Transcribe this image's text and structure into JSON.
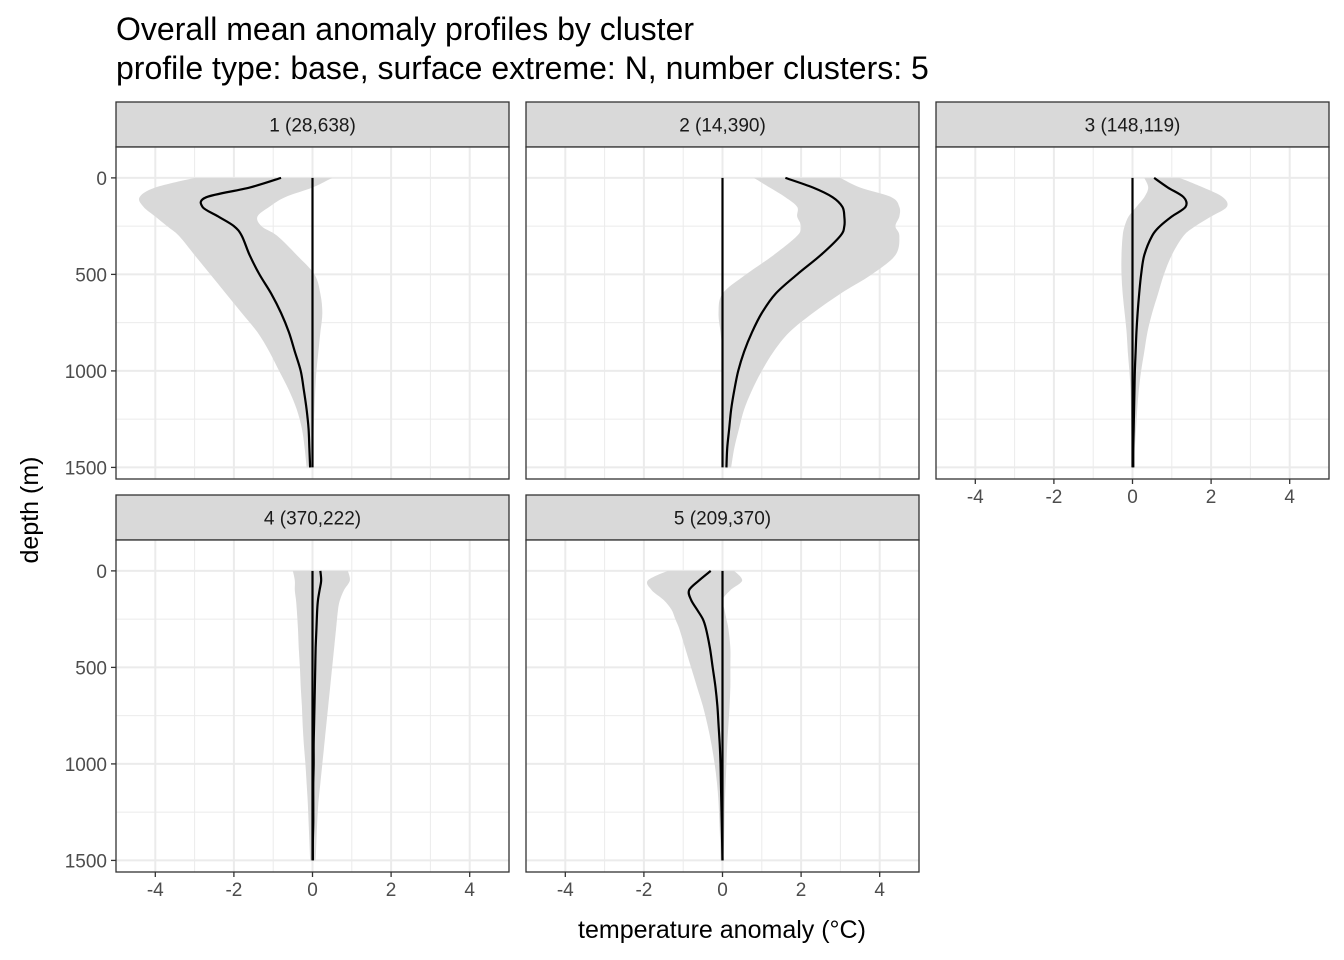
{
  "chart_data": {
    "type": "area",
    "title": "Overall mean anomaly profiles by cluster",
    "subtitle": "profile type: base, surface extreme: N, number clusters: 5",
    "xlabel": "temperature anomaly (°C)",
    "ylabel": "depth (m)",
    "xlim": [
      -5,
      5
    ],
    "ylim": [
      1560,
      -160
    ],
    "y_reversed": true,
    "x_ticks": [
      -4,
      -2,
      0,
      2,
      4
    ],
    "x_tick_labels": [
      "-4",
      "-2",
      "0",
      "2",
      "4"
    ],
    "y_ticks": [
      0,
      500,
      1000,
      1500
    ],
    "y_tick_labels": [
      "0",
      "500",
      "1000",
      "1500"
    ],
    "grid": true,
    "reference_line_x": 0,
    "colors": {
      "mean_line": "#000000",
      "ribbon": "#d9d9d9",
      "strip_fill": "#d9d9d9",
      "grid": "#ebebeb",
      "panel_border": "#333333"
    },
    "panels": [
      {
        "label": "1 (28,638)",
        "depth": [
          0,
          50,
          100,
          150,
          200,
          250,
          300,
          400,
          500,
          600,
          700,
          800,
          900,
          1000,
          1100,
          1200,
          1300,
          1400,
          1500
        ],
        "mean": [
          -0.8,
          -1.6,
          -2.7,
          -2.8,
          -2.4,
          -2.0,
          -1.8,
          -1.6,
          -1.35,
          -1.05,
          -0.8,
          -0.6,
          -0.45,
          -0.3,
          -0.22,
          -0.15,
          -0.1,
          -0.08,
          -0.06
        ],
        "lower": [
          -3.0,
          -4.0,
          -4.4,
          -4.3,
          -4.0,
          -3.7,
          -3.4,
          -3.0,
          -2.6,
          -2.2,
          -1.8,
          -1.4,
          -1.1,
          -0.85,
          -0.6,
          -0.4,
          -0.27,
          -0.2,
          -0.15
        ],
        "upper": [
          0.5,
          0.0,
          -0.7,
          -1.1,
          -1.4,
          -1.3,
          -0.9,
          -0.4,
          0.05,
          0.2,
          0.25,
          0.2,
          0.15,
          0.1,
          0.07,
          0.05,
          0.03,
          0.02,
          0.02
        ]
      },
      {
        "label": "2 (14,390)",
        "depth": [
          0,
          50,
          100,
          150,
          200,
          250,
          300,
          400,
          500,
          600,
          700,
          800,
          900,
          1000,
          1100,
          1200,
          1300,
          1400,
          1500
        ],
        "mean": [
          1.6,
          2.3,
          2.8,
          3.05,
          3.1,
          3.1,
          3.0,
          2.5,
          1.9,
          1.35,
          1.0,
          0.75,
          0.55,
          0.4,
          0.3,
          0.22,
          0.17,
          0.12,
          0.1
        ],
        "lower": [
          0.8,
          1.2,
          1.6,
          1.9,
          1.9,
          2.0,
          1.9,
          1.3,
          0.6,
          0.0,
          -0.1,
          -0.05,
          0.0,
          0.0,
          0.0,
          0.0,
          0.0,
          0.0,
          0.0
        ],
        "upper": [
          3.0,
          3.5,
          4.3,
          4.5,
          4.5,
          4.4,
          4.5,
          4.4,
          3.8,
          3.0,
          2.3,
          1.7,
          1.3,
          1.0,
          0.75,
          0.55,
          0.42,
          0.3,
          0.22
        ]
      },
      {
        "label": "3 (148,119)",
        "depth": [
          0,
          50,
          100,
          150,
          200,
          250,
          300,
          400,
          500,
          600,
          700,
          800,
          900,
          1000,
          1100,
          1200,
          1300,
          1400,
          1500
        ],
        "mean": [
          0.55,
          0.9,
          1.3,
          1.35,
          1.0,
          0.7,
          0.5,
          0.3,
          0.22,
          0.17,
          0.13,
          0.1,
          0.08,
          0.06,
          0.05,
          0.04,
          0.03,
          0.02,
          0.02
        ],
        "lower": [
          0.3,
          0.4,
          0.3,
          0.1,
          -0.1,
          -0.2,
          -0.25,
          -0.28,
          -0.28,
          -0.25,
          -0.2,
          -0.15,
          -0.12,
          -0.08,
          -0.05,
          -0.04,
          -0.03,
          -0.02,
          -0.02
        ],
        "upper": [
          1.2,
          1.8,
          2.3,
          2.4,
          2.0,
          1.6,
          1.3,
          1.0,
          0.8,
          0.65,
          0.5,
          0.38,
          0.3,
          0.22,
          0.16,
          0.12,
          0.09,
          0.06,
          0.05
        ]
      },
      {
        "label": "4 (370,222)",
        "depth": [
          0,
          50,
          100,
          150,
          200,
          300,
          400,
          500,
          600,
          700,
          800,
          900,
          1000,
          1100,
          1200,
          1300,
          1400,
          1500
        ],
        "mean": [
          0.2,
          0.22,
          0.18,
          0.14,
          0.12,
          0.1,
          0.08,
          0.07,
          0.06,
          0.05,
          0.04,
          0.03,
          0.03,
          0.02,
          0.02,
          0.02,
          0.01,
          0.01
        ],
        "lower": [
          -0.5,
          -0.45,
          -0.45,
          -0.42,
          -0.4,
          -0.37,
          -0.35,
          -0.32,
          -0.3,
          -0.27,
          -0.25,
          -0.22,
          -0.18,
          -0.15,
          -0.12,
          -0.1,
          -0.08,
          -0.06
        ],
        "upper": [
          0.9,
          0.95,
          0.8,
          0.7,
          0.65,
          0.6,
          0.55,
          0.5,
          0.45,
          0.4,
          0.35,
          0.3,
          0.25,
          0.2,
          0.15,
          0.12,
          0.1,
          0.08
        ]
      },
      {
        "label": "5 (209,370)",
        "depth": [
          0,
          50,
          100,
          150,
          200,
          250,
          300,
          400,
          500,
          600,
          700,
          800,
          900,
          1000,
          1100,
          1200,
          1300,
          1400,
          1500
        ],
        "mean": [
          -0.3,
          -0.6,
          -0.85,
          -0.8,
          -0.65,
          -0.5,
          -0.42,
          -0.32,
          -0.25,
          -0.18,
          -0.13,
          -0.1,
          -0.07,
          -0.05,
          -0.04,
          -0.03,
          -0.02,
          -0.01,
          0.0
        ],
        "lower": [
          -1.4,
          -1.9,
          -1.8,
          -1.5,
          -1.3,
          -1.2,
          -1.1,
          -0.95,
          -0.8,
          -0.65,
          -0.5,
          -0.38,
          -0.28,
          -0.2,
          -0.14,
          -0.1,
          -0.08,
          -0.06,
          -0.05
        ],
        "upper": [
          0.3,
          0.5,
          0.2,
          0.0,
          0.05,
          0.1,
          0.15,
          0.2,
          0.2,
          0.2,
          0.18,
          0.15,
          0.12,
          0.1,
          0.08,
          0.06,
          0.05,
          0.04,
          0.03
        ]
      }
    ]
  }
}
